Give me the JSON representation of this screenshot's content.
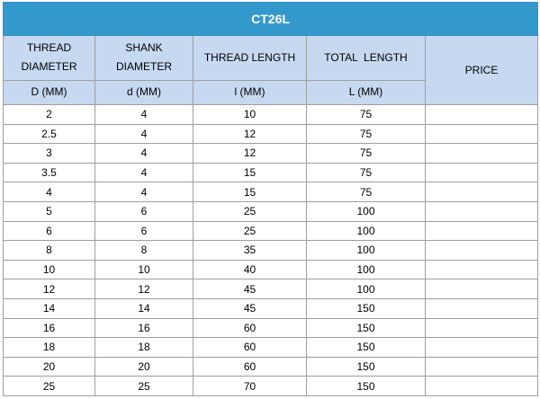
{
  "table": {
    "title": "CT26L",
    "headers": {
      "thread_diameter": [
        "THREAD",
        "DIAMETER"
      ],
      "shank_diameter": [
        "SHANK",
        "DIAMETER"
      ],
      "thread_length": "THREAD LENGTH",
      "total_length": "TOTAL  LENGTH",
      "price": "PRICE"
    },
    "subheaders": {
      "thread_diameter": "D (MM)",
      "shank_diameter": "d (MM)",
      "thread_length": "l (MM)",
      "total_length": "L (MM)"
    },
    "rows": [
      [
        "2",
        "4",
        "10",
        "75",
        ""
      ],
      [
        "2.5",
        "4",
        "12",
        "75",
        ""
      ],
      [
        "3",
        "4",
        "12",
        "75",
        ""
      ],
      [
        "3.5",
        "4",
        "15",
        "75",
        ""
      ],
      [
        "4",
        "4",
        "15",
        "75",
        ""
      ],
      [
        "5",
        "6",
        "25",
        "100",
        ""
      ],
      [
        "6",
        "6",
        "25",
        "100",
        ""
      ],
      [
        "8",
        "8",
        "35",
        "100",
        ""
      ],
      [
        "10",
        "10",
        "40",
        "100",
        ""
      ],
      [
        "12",
        "12",
        "45",
        "100",
        ""
      ],
      [
        "14",
        "14",
        "45",
        "150",
        ""
      ],
      [
        "16",
        "16",
        "60",
        "150",
        ""
      ],
      [
        "18",
        "18",
        "60",
        "150",
        ""
      ],
      [
        "20",
        "20",
        "60",
        "150",
        ""
      ],
      [
        "25",
        "25",
        "70",
        "150",
        ""
      ]
    ]
  },
  "colors": {
    "title_bg": "#3399cc",
    "header_bg": "#c6d9f1",
    "border": "#9e9e9e"
  }
}
